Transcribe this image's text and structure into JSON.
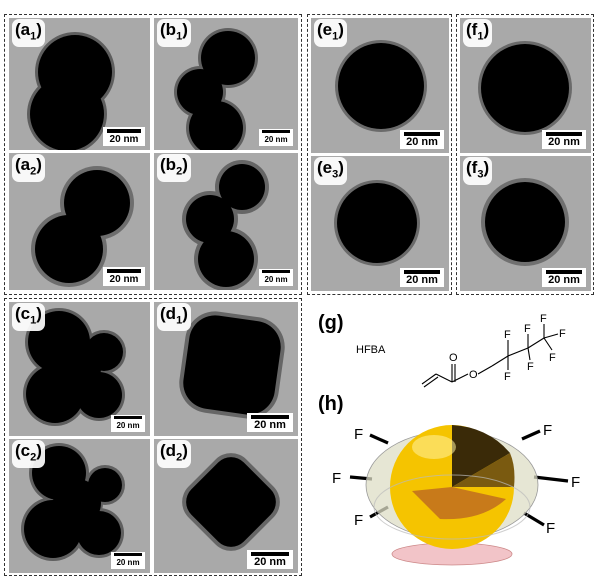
{
  "panels": {
    "a1": {
      "label": "a",
      "sub": "1",
      "scale": "20 nm"
    },
    "a2": {
      "label": "a",
      "sub": "2",
      "scale": "20 nm"
    },
    "b1": {
      "label": "b",
      "sub": "1",
      "scale": "20 nm"
    },
    "b2": {
      "label": "b",
      "sub": "2",
      "scale": "20 nm"
    },
    "c1": {
      "label": "c",
      "sub": "1",
      "scale": "20 nm"
    },
    "c2": {
      "label": "c",
      "sub": "2",
      "scale": "20 nm"
    },
    "d1": {
      "label": "d",
      "sub": "1",
      "scale": "20 nm"
    },
    "d2": {
      "label": "d",
      "sub": "2",
      "scale": "20 nm"
    },
    "e1": {
      "label": "e",
      "sub": "1",
      "scale": "20 nm"
    },
    "e3": {
      "label": "e",
      "sub": "3",
      "scale": "20 nm"
    },
    "f1": {
      "label": "f",
      "sub": "1",
      "scale": "20 nm"
    },
    "f3": {
      "label": "f",
      "sub": "3",
      "scale": "20 nm"
    }
  },
  "g": {
    "label": "(g)",
    "molecule": "HFBA",
    "atoms": {
      "o_carbonyl": "O",
      "o_ester": "O",
      "f1": "F",
      "f2": "F",
      "f3": "F",
      "f4": "F",
      "f5": "F",
      "f6": "F",
      "f7": "F"
    }
  },
  "h": {
    "label": "(h)",
    "fluorine": [
      "F",
      "F",
      "F",
      "F",
      "F",
      "F",
      "F"
    ]
  },
  "colors": {
    "tem_bg": "#a9a9a9",
    "particle": "#000000",
    "shell": "#5e5e5e",
    "gold": "#f5c400"
  }
}
